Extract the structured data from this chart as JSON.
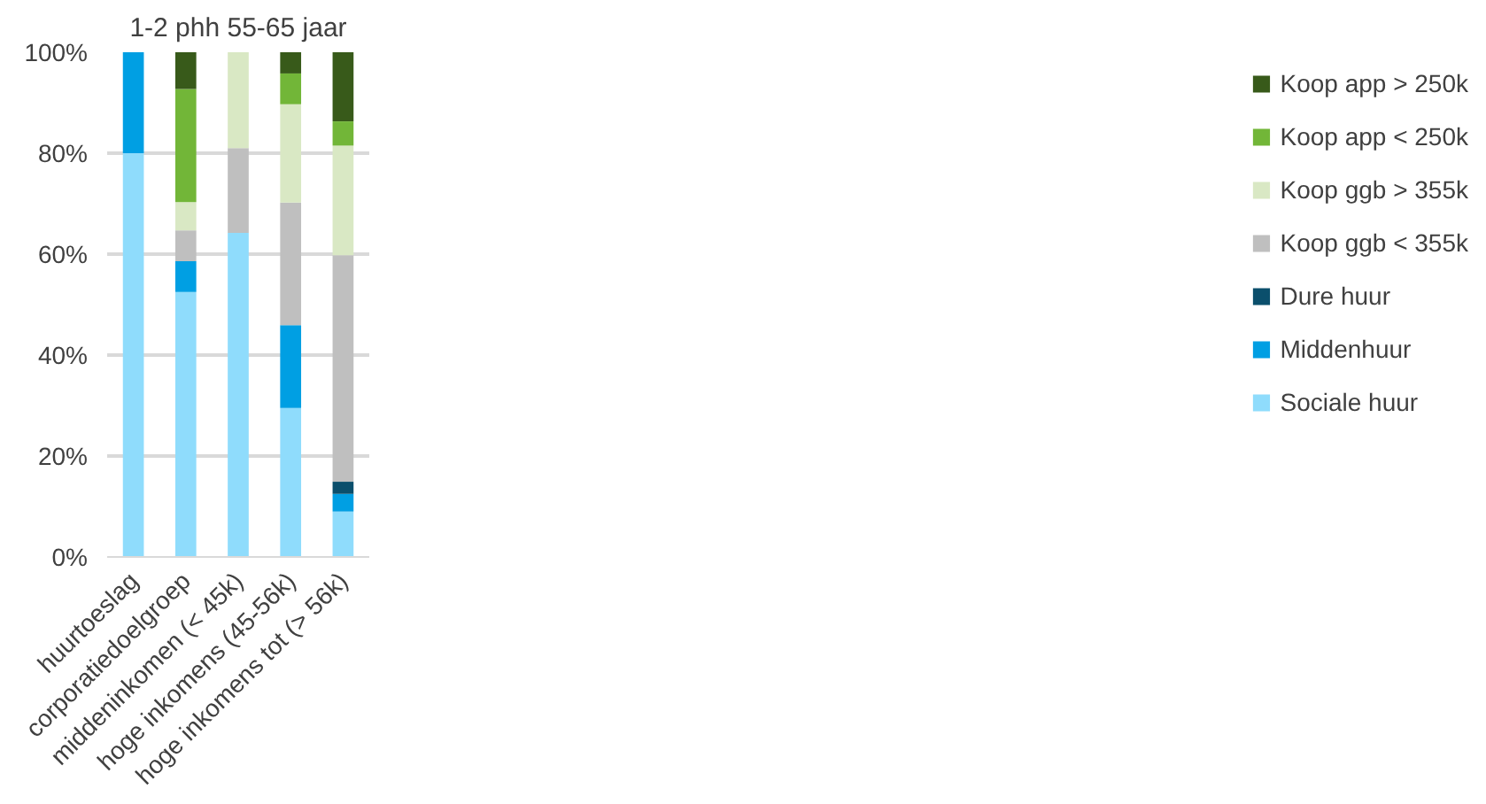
{
  "chart_data": {
    "type": "bar",
    "stacked": true,
    "title": "1-2 phh 55-65 jaar",
    "categories": [
      "huurtoeslag",
      "corporatiedoelgroep",
      "middeninkomen (< 45k)",
      "hoge inkomens (45-56k)",
      "hoge inkomens tot (> 56k)"
    ],
    "series": [
      {
        "name": "Sociale huur",
        "color": "#8fdcfc",
        "values": [
          80,
          52.5,
          64.2,
          29.5,
          9.0
        ]
      },
      {
        "name": "Middenhuur",
        "color": "#009fe3",
        "values": [
          20,
          6.1,
          0,
          16.4,
          3.5
        ]
      },
      {
        "name": "Dure huur",
        "color": "#0b4f6c",
        "values": [
          0,
          0,
          0,
          0,
          2.4
        ]
      },
      {
        "name": "Koop ggb < 355k",
        "color": "#bfbfbf",
        "values": [
          0,
          6.1,
          16.8,
          24.3,
          44.9
        ]
      },
      {
        "name": "Koop ggb > 355k",
        "color": "#d9e8c4",
        "values": [
          0,
          5.6,
          19.0,
          19.5,
          21.7
        ]
      },
      {
        "name": "Koop app < 250k",
        "color": "#72b638",
        "values": [
          0,
          22.4,
          0,
          6.1,
          4.8
        ]
      },
      {
        "name": "Koop app > 250k",
        "color": "#385a1a",
        "values": [
          0,
          7.3,
          0,
          4.2,
          13.7
        ]
      }
    ],
    "ylim": [
      0,
      100
    ],
    "yticks": [
      {
        "value": 0,
        "label": "0%"
      },
      {
        "value": 20,
        "label": "20%"
      },
      {
        "value": 40,
        "label": "40%"
      },
      {
        "value": 60,
        "label": "60%"
      },
      {
        "value": 80,
        "label": "80%"
      },
      {
        "value": 100,
        "label": "100%"
      }
    ],
    "grid": "y",
    "legend": "right"
  }
}
